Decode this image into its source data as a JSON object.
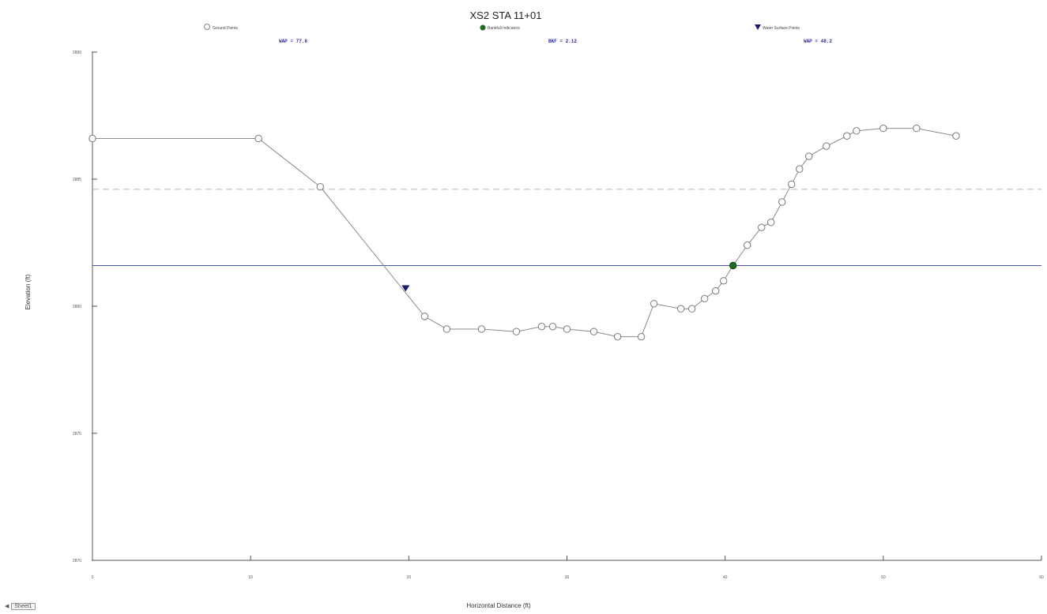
{
  "chart_data": {
    "type": "scatter",
    "title": "XS2 STA 11+01",
    "xlabel": "Horizontal Distance (ft)",
    "ylabel": "Elevation (ft)",
    "xlim": [
      0,
      60
    ],
    "ylim": [
      2870,
      2890
    ],
    "xticks": [
      "0",
      "10",
      "20",
      "30",
      "40",
      "50",
      "60"
    ],
    "yticks": [
      "2870",
      "2875",
      "2880",
      "2885",
      "2890"
    ],
    "grid": false,
    "legend_position": "top",
    "series": [
      {
        "name": "Ground Points",
        "marker": "open-circle",
        "connected": true,
        "color": "#8a8a8a",
        "x": [
          0,
          10.5,
          14.4,
          21.0,
          22.4,
          24.6,
          26.8,
          28.4,
          29.1,
          30.0,
          31.7,
          33.2,
          34.7,
          35.5,
          37.2,
          37.9,
          38.7,
          39.4,
          39.9,
          40.5,
          41.4,
          42.3,
          42.9,
          43.6,
          44.2,
          44.7,
          45.3,
          46.4,
          47.7,
          48.3,
          50.0,
          52.1,
          54.6
        ],
        "y": [
          2886.6,
          2886.6,
          2884.7,
          2879.6,
          2879.1,
          2879.1,
          2879.0,
          2879.2,
          2879.2,
          2879.1,
          2879.0,
          2878.8,
          2878.8,
          2880.1,
          2879.9,
          2879.9,
          2880.3,
          2880.6,
          2881.0,
          2881.6,
          2882.4,
          2883.1,
          2883.3,
          2884.1,
          2884.8,
          2885.4,
          2885.9,
          2886.3,
          2886.7,
          2886.9,
          2887.0,
          2887.0,
          2886.7
        ]
      },
      {
        "name": "Bankfull Indicators",
        "marker": "filled-circle",
        "color": "#1b6e1b",
        "x": [
          40.5
        ],
        "y": [
          2881.6
        ]
      },
      {
        "name": "Water Surface Points",
        "marker": "filled-triangle-down",
        "color": "#1a1a6e",
        "x": [
          19.8
        ],
        "y": [
          2880.7
        ]
      }
    ],
    "reference_lines": [
      {
        "type": "dashed",
        "y": 2884.6,
        "color": "#b8b8b8"
      },
      {
        "type": "solid",
        "y": 2881.6,
        "color": "#4d55a8"
      }
    ],
    "annotations": [
      {
        "text": "WAP = 77.8",
        "color": "#2b2b9a"
      },
      {
        "text": "BKF = 2.12",
        "color": "#2b2b9a"
      },
      {
        "text": "WAP = 48.2",
        "color": "#2b2b9a"
      }
    ]
  },
  "sheet_tab": {
    "label": "Sheet1"
  },
  "colors": {
    "axis": "#555555",
    "text": "#222222"
  }
}
